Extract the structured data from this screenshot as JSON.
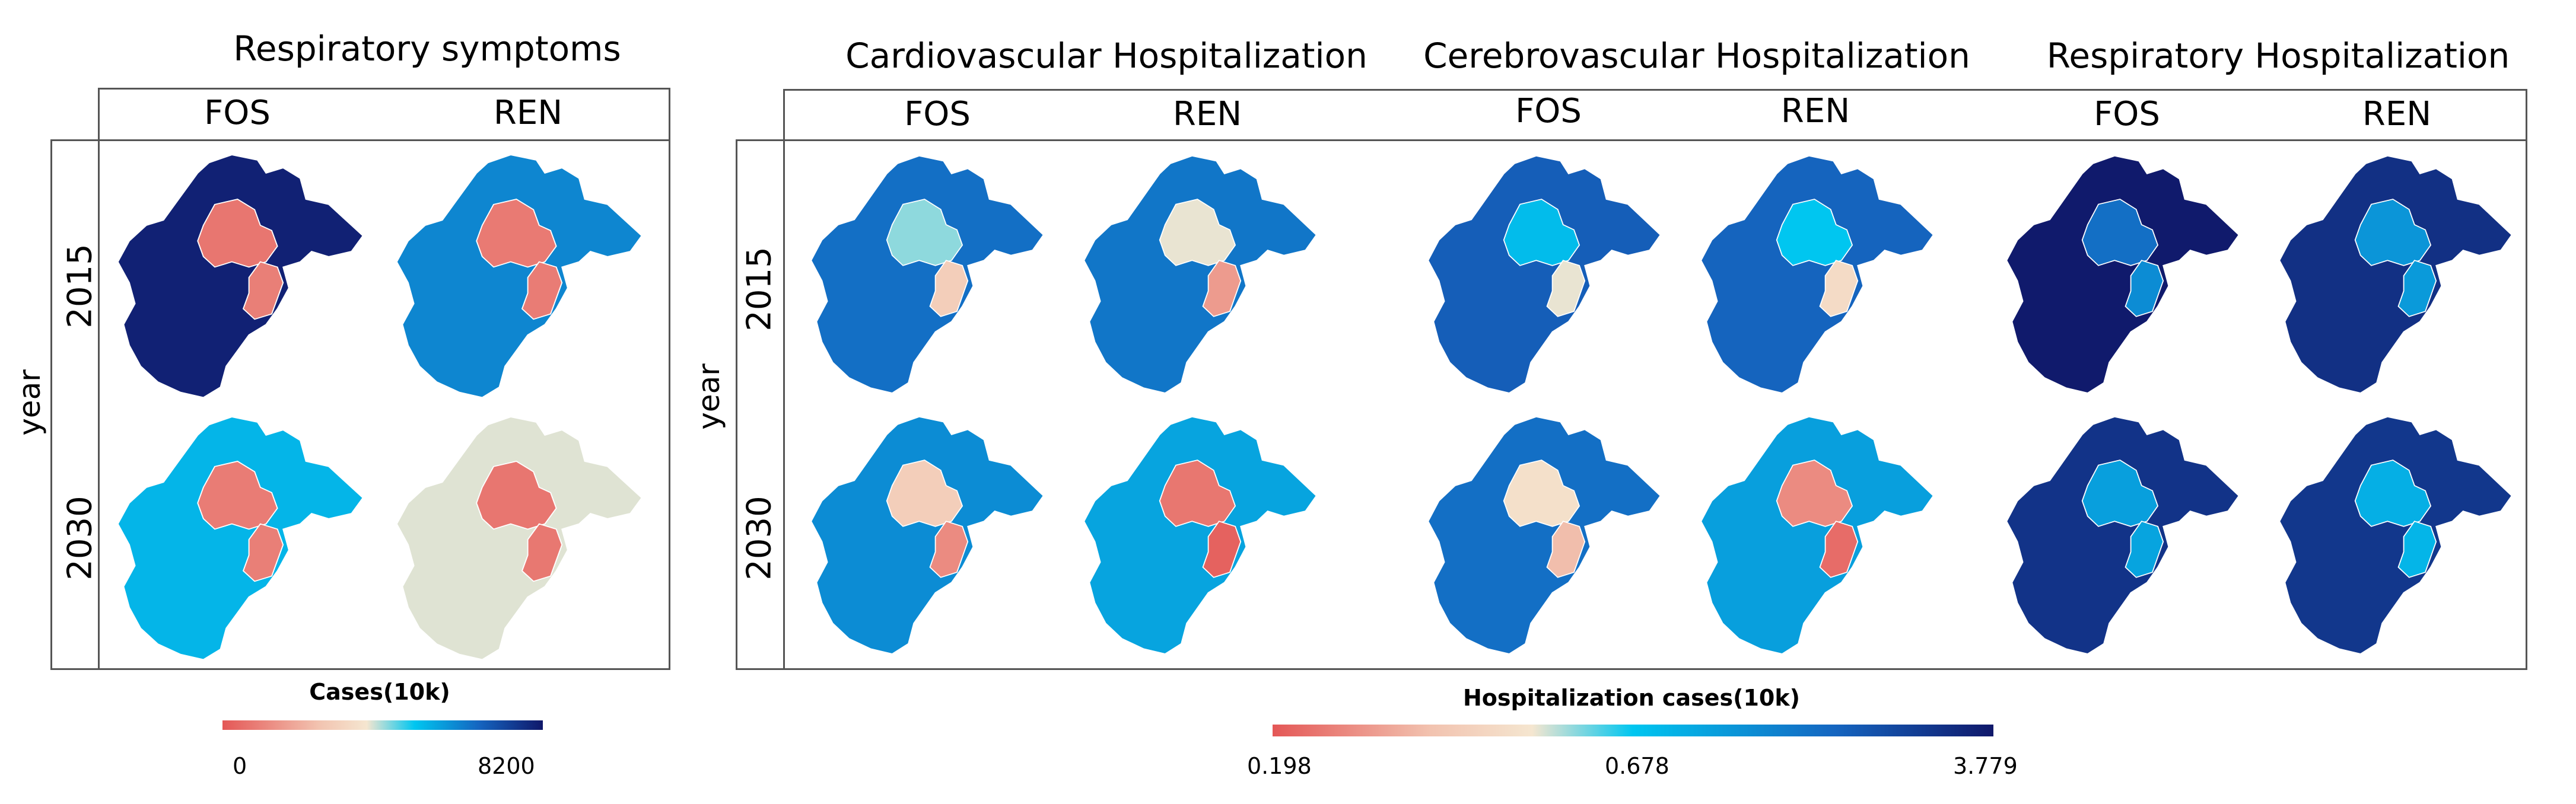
{
  "chart_data": [
    {
      "type": "choropleth-map-grid",
      "title": "Respiratory symptoms",
      "row_axis_label": "year",
      "rows": [
        "2015",
        "2030"
      ],
      "columns": [
        "FOS",
        "REN"
      ],
      "colorbar": {
        "title": "Cases(10k)",
        "ticks": [
          "0",
          "8200"
        ],
        "min": 0,
        "max": 8200
      },
      "regions": [
        "Hebei",
        "Beijing",
        "Tianjin"
      ],
      "cells": [
        {
          "year": "2015",
          "scenario": "FOS",
          "Hebei": 8000,
          "Beijing": 700,
          "Tianjin": 900
        },
        {
          "year": "2015",
          "scenario": "REN",
          "Hebei": 6000,
          "Beijing": 800,
          "Tianjin": 850
        },
        {
          "year": "2030",
          "scenario": "FOS",
          "Hebei": 5200,
          "Beijing": 850,
          "Tianjin": 900
        },
        {
          "year": "2030",
          "scenario": "REN",
          "Hebei": 3800,
          "Beijing": 700,
          "Tianjin": 750
        }
      ]
    },
    {
      "type": "choropleth-map-grid",
      "title": "Cardiovascular Hospitalization",
      "row_axis_label": "year",
      "rows": [
        "2015",
        "2030"
      ],
      "columns": [
        "FOS",
        "REN"
      ],
      "colorbar": {
        "title": "Hospitalization cases(10k)",
        "ticks": [
          "0.198",
          "0.678",
          "3.779"
        ],
        "min": 0.198,
        "mid": 0.678,
        "max": 3.779
      },
      "cells": [
        {
          "year": "2015",
          "scenario": "FOS",
          "Hebei": 1.6,
          "Beijing": 0.6,
          "Tianjin": 0.45
        },
        {
          "year": "2015",
          "scenario": "REN",
          "Hebei": 1.5,
          "Beijing": 0.55,
          "Tianjin": 0.33
        },
        {
          "year": "2030",
          "scenario": "FOS",
          "Hebei": 1.2,
          "Beijing": 0.45,
          "Tianjin": 0.3
        },
        {
          "year": "2030",
          "scenario": "REN",
          "Hebei": 0.95,
          "Beijing": 0.26,
          "Tianjin": 0.22
        }
      ]
    },
    {
      "type": "choropleth-map-grid",
      "title": "Cerebrovascular Hospitalization",
      "row_axis_label": "year",
      "rows": [
        "2015",
        "2030"
      ],
      "columns": [
        "FOS",
        "REN"
      ],
      "cells": [
        {
          "year": "2015",
          "scenario": "FOS",
          "Hebei": 1.9,
          "Beijing": 0.75,
          "Tianjin": 0.55
        },
        {
          "year": "2015",
          "scenario": "REN",
          "Hebei": 1.8,
          "Beijing": 0.68,
          "Tianjin": 0.5
        },
        {
          "year": "2030",
          "scenario": "FOS",
          "Hebei": 1.6,
          "Beijing": 0.52,
          "Tianjin": 0.4
        },
        {
          "year": "2030",
          "scenario": "REN",
          "Hebei": 1.0,
          "Beijing": 0.3,
          "Tianjin": 0.24
        }
      ]
    },
    {
      "type": "choropleth-map-grid",
      "title": "Respiratory Hospitalization",
      "row_axis_label": "year",
      "rows": [
        "2015",
        "2030"
      ],
      "columns": [
        "FOS",
        "REN"
      ],
      "cells": [
        {
          "year": "2015",
          "scenario": "FOS",
          "Hebei": 3.7,
          "Beijing": 1.6,
          "Tianjin": 1.2
        },
        {
          "year": "2015",
          "scenario": "REN",
          "Hebei": 3.0,
          "Beijing": 1.1,
          "Tianjin": 1.05
        },
        {
          "year": "2030",
          "scenario": "FOS",
          "Hebei": 2.9,
          "Beijing": 1.0,
          "Tianjin": 0.95
        },
        {
          "year": "2030",
          "scenario": "REN",
          "Hebei": 2.8,
          "Beijing": 0.85,
          "Tianjin": 0.8
        }
      ]
    }
  ],
  "colors": {
    "frame": "#555555",
    "scale_low": "#e45756",
    "scale_pale": "#f5e6d0",
    "scale_mid": "#00c6f0",
    "scale_blue": "#1565c0",
    "scale_high": "#10186a"
  }
}
